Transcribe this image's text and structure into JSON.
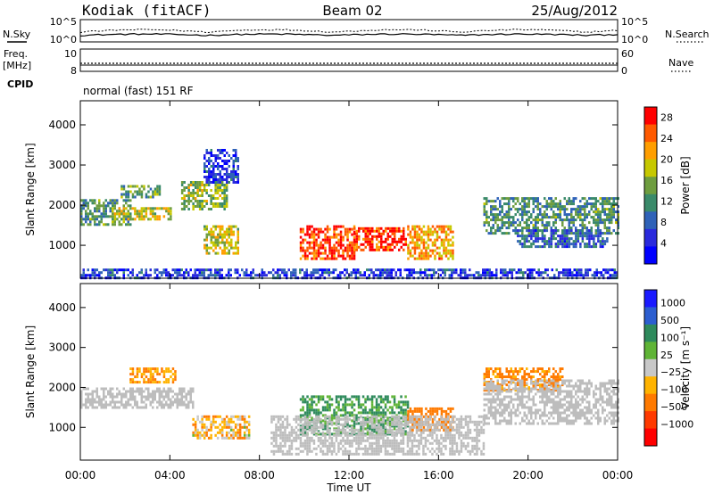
{
  "header": {
    "station": "Kodiak (fitACF)",
    "beam": "Beam 02",
    "date": "25/Aug/2012"
  },
  "top_panels": {
    "nsky_label": "N.Sky",
    "nsearch_label": "N.Search",
    "noise_left_ticks": [
      "10^5",
      "10^0"
    ],
    "noise_right_ticks": [
      "10^5",
      "10^0"
    ],
    "freq_label_line1": "Freq.",
    "freq_label_line2": "[MHz]",
    "freq_ticks": [
      "10",
      "8"
    ],
    "nave_label": "Nave",
    "nave_ticks": [
      "60",
      "0"
    ],
    "cpid_label": "CPID",
    "cpid_text": "normal (fast) 151 RF"
  },
  "x_axis": {
    "label": "Time UT",
    "ticks": [
      "00:00",
      "04:00",
      "08:00",
      "12:00",
      "16:00",
      "20:00",
      "00:00"
    ]
  },
  "colors": {
    "power_scale": [
      "#0000ff",
      "#2a2adc",
      "#2f62b8",
      "#3a8a6a",
      "#6e9d3f",
      "#c6c800",
      "#ff9e00",
      "#ff5a00",
      "#ff0000"
    ],
    "velocity_scale": [
      "#1a1aff",
      "#2c5ed0",
      "#2e8a5c",
      "#5fb436",
      "#c8c8c8",
      "#ffb300",
      "#ff7a00",
      "#ff3a00",
      "#ff0000"
    ],
    "ground_scatter": "#bdbdbd"
  },
  "chart_data": [
    {
      "type": "heatmap",
      "title": "",
      "xlabel": "",
      "ylabel": "Slant Range [km]",
      "yticks": [
        "1000",
        "2000",
        "3000",
        "4000"
      ],
      "ylim": [
        180,
        4600
      ],
      "xlim": [
        0,
        24
      ],
      "colorbar_label": "Power [dB]",
      "colorbar_ticks": [
        "4",
        "8",
        "12",
        "16",
        "20",
        "24",
        "28"
      ],
      "colorbar_range": [
        0,
        30
      ],
      "regions": [
        {
          "x": [
            0.0,
            2.2
          ],
          "y": [
            1500,
            2150
          ],
          "level": 12
        },
        {
          "x": [
            1.5,
            4.0
          ],
          "y": [
            1650,
            1950
          ],
          "level": 18
        },
        {
          "x": [
            1.8,
            3.5
          ],
          "y": [
            2200,
            2500
          ],
          "level": 14
        },
        {
          "x": [
            4.5,
            6.5
          ],
          "y": [
            1900,
            2600
          ],
          "level": 16
        },
        {
          "x": [
            5.5,
            7.0
          ],
          "y": [
            800,
            1500
          ],
          "level": 18
        },
        {
          "x": [
            5.5,
            7.0
          ],
          "y": [
            2600,
            3400
          ],
          "level": 6
        },
        {
          "x": [
            9.8,
            12.2
          ],
          "y": [
            700,
            1500
          ],
          "level": 26
        },
        {
          "x": [
            12.2,
            14.5
          ],
          "y": [
            900,
            1450
          ],
          "level": 27
        },
        {
          "x": [
            14.6,
            16.6
          ],
          "y": [
            700,
            1500
          ],
          "level": 22
        },
        {
          "x": [
            18.0,
            24.0
          ],
          "y": [
            1300,
            2200
          ],
          "level": 12
        },
        {
          "x": [
            19.5,
            23.5
          ],
          "y": [
            1000,
            1400
          ],
          "level": 8
        },
        {
          "x": [
            0.0,
            24.0
          ],
          "y": [
            180,
            420
          ],
          "level": 6
        }
      ]
    },
    {
      "type": "heatmap",
      "title": "",
      "xlabel": "Time UT",
      "ylabel": "Slant Range [km]",
      "yticks": [
        "1000",
        "2000",
        "3000",
        "4000"
      ],
      "ylim": [
        180,
        4600
      ],
      "xlim": [
        0,
        24
      ],
      "colorbar_label": "Velocity [m s⁻¹]",
      "colorbar_ticks": [
        "1000",
        "500",
        "100",
        "25",
        "−25",
        "−100",
        "−500",
        "−1000"
      ],
      "colorbar_range": [
        -1200,
        1200
      ],
      "regions": [
        {
          "x": [
            0.0,
            5.0
          ],
          "y": [
            1500,
            2000
          ],
          "velocity": 0,
          "ground_scatter": true
        },
        {
          "x": [
            2.2,
            4.2
          ],
          "y": [
            2150,
            2500
          ],
          "velocity": -120
        },
        {
          "x": [
            5.0,
            7.5
          ],
          "y": [
            700,
            1300
          ],
          "velocity": -60
        },
        {
          "x": [
            9.8,
            14.6
          ],
          "y": [
            800,
            1800
          ],
          "velocity": 120
        },
        {
          "x": [
            14.6,
            16.6
          ],
          "y": [
            900,
            1500
          ],
          "velocity": -200
        },
        {
          "x": [
            18.0,
            21.5
          ],
          "y": [
            1900,
            2500
          ],
          "velocity": -150
        },
        {
          "x": [
            18.0,
            24.0
          ],
          "y": [
            1100,
            2200
          ],
          "velocity": 0,
          "ground_scatter": true
        },
        {
          "x": [
            8.5,
            18.0
          ],
          "y": [
            300,
            1300
          ],
          "velocity": 0,
          "ground_scatter": true
        }
      ]
    }
  ]
}
